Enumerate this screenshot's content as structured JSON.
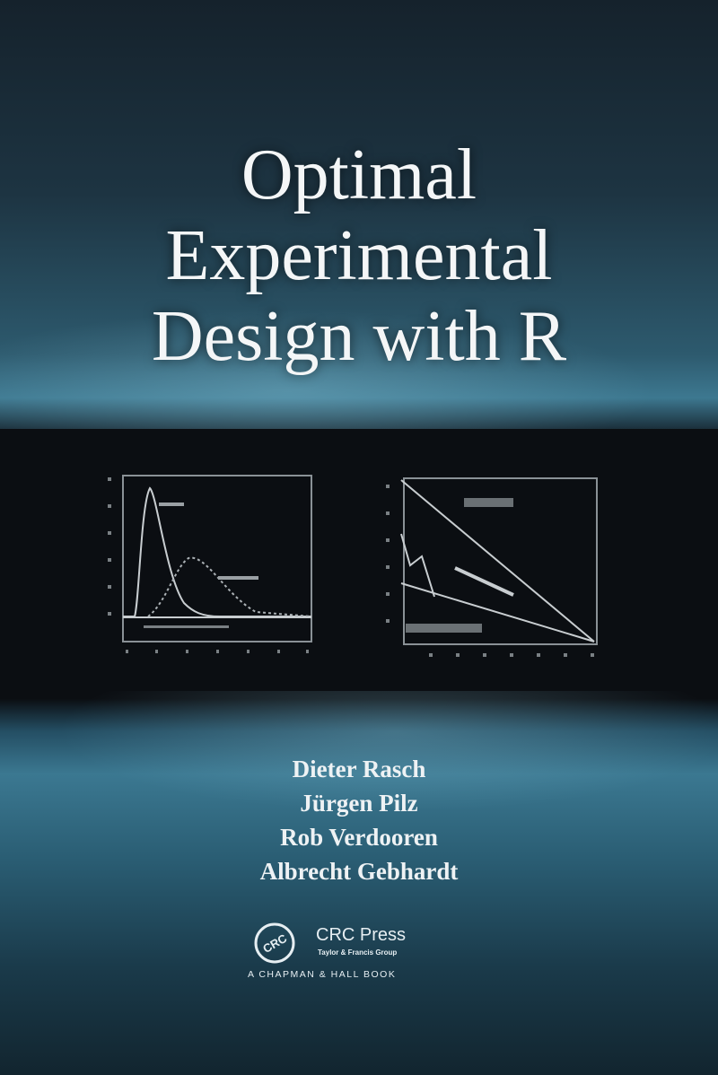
{
  "title_lines": [
    "Optimal",
    "Experimental",
    "Design with R"
  ],
  "authors": [
    "Dieter Rasch",
    "Jürgen Pilz",
    "Rob Verdooren",
    "Albrecht Gebhardt"
  ],
  "publisher": {
    "logo_text": "CRC",
    "name": "CRC Press",
    "group": "Taylor & Francis Group",
    "imprint": "A CHAPMAN & HALL BOOK"
  },
  "colors": {
    "dark_band": "#0b0e12",
    "teal": "#3b7891",
    "text": "#f4f6f7"
  }
}
